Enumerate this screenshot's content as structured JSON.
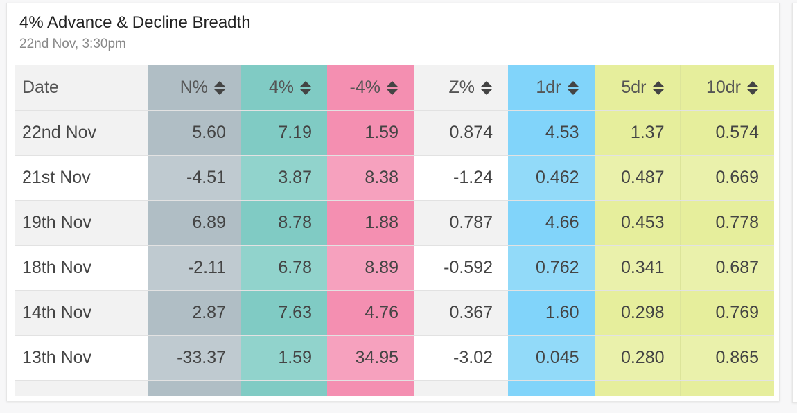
{
  "widget": {
    "title": "4% Advance & Decline Breadth",
    "subtitle": "22nd Nov, 3:30pm"
  },
  "table": {
    "columns": [
      {
        "label": "Date",
        "sortable": false
      },
      {
        "label": "N%",
        "sortable": true
      },
      {
        "label": "4%",
        "sortable": true
      },
      {
        "label": "-4%",
        "sortable": true
      },
      {
        "label": "Z%",
        "sortable": true
      },
      {
        "label": "1dr",
        "sortable": true
      },
      {
        "label": "5dr",
        "sortable": true
      },
      {
        "label": "10dr",
        "sortable": true
      }
    ],
    "rows": [
      [
        "22nd Nov",
        "5.60",
        "7.19",
        "1.59",
        "0.874",
        "4.53",
        "1.37",
        "0.574"
      ],
      [
        "21st Nov",
        "-4.51",
        "3.87",
        "8.38",
        "-1.24",
        "0.462",
        "0.487",
        "0.669"
      ],
      [
        "19th Nov",
        "6.89",
        "8.78",
        "1.88",
        "0.787",
        "4.66",
        "0.453",
        "0.778"
      ],
      [
        "18th Nov",
        "-2.11",
        "6.78",
        "8.89",
        "-0.592",
        "0.762",
        "0.341",
        "0.687"
      ],
      [
        "14th Nov",
        "2.87",
        "7.63",
        "4.76",
        "0.367",
        "1.60",
        "0.298",
        "0.769"
      ],
      [
        "13th Nov",
        "-33.37",
        "1.59",
        "34.95",
        "-3.02",
        "0.045",
        "0.280",
        "0.865"
      ]
    ],
    "sort_icon": "sort-updown-icon"
  },
  "colors": {
    "N%": "#b0bec5",
    "4%": "#80cbc4",
    "-4%": "#f48fb1",
    "1dr": "#81d4fa",
    "5dr": "#e6ee9c",
    "10dr": "#e6ee9c"
  }
}
